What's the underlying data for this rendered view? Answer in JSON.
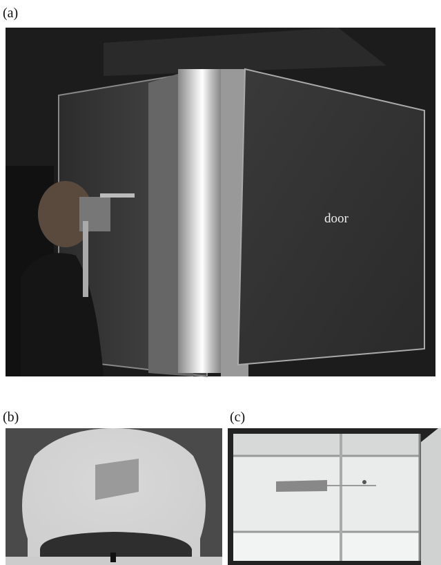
{
  "panels": [
    {
      "label": "(a)",
      "annotation": "door"
    },
    {
      "label": "(b)"
    },
    {
      "label": "(c)"
    }
  ]
}
